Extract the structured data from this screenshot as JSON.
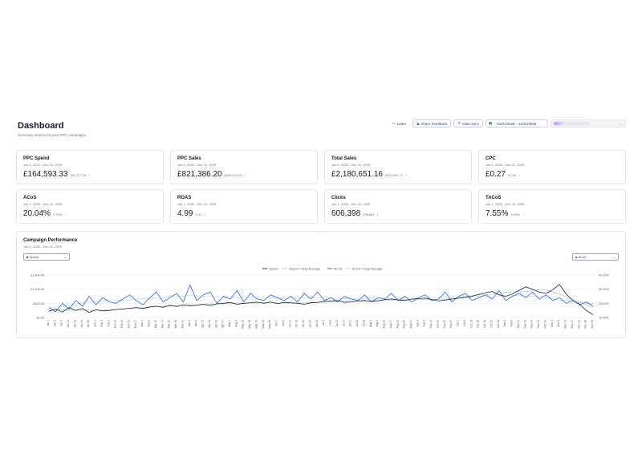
{
  "header": {
    "title": "Dashboard",
    "subtitle": "Summary metrics for your PPC campaigns"
  },
  "toolbar": {
    "learn_label": "Learn",
    "feedback_label": "Share Feedback",
    "sync_label": "Data Sync",
    "date_range": "01/01/2025 - 12/31/2025"
  },
  "cards": [
    {
      "label": "PPC Spend",
      "date": "Jan 1, 2025 - Dec 31, 2025",
      "value": "£164,593.33",
      "change": "£81,177.32"
    },
    {
      "label": "PPC Sales",
      "date": "Jan 1, 2025 - Dec 31, 2025",
      "value": "£821,386.20",
      "change": "£439,211.23"
    },
    {
      "label": "Total Sales",
      "date": "Jan 1, 2025 - Dec 31, 2025",
      "value": "£2,180,651.16",
      "change": "£310,597.77"
    },
    {
      "label": "CPC",
      "date": "Jan 1, 2025 - Dec 31, 2025",
      "value": "£0.27",
      "change": "£0.00"
    },
    {
      "label": "ACoS",
      "date": "Jan 1, 2025 - Dec 31, 2025",
      "value": "20.04%",
      "change": "1.79%"
    },
    {
      "label": "ROAS",
      "date": "Jan 1, 2025 - Dec 31, 2025",
      "value": "4.99",
      "change": "0.41"
    },
    {
      "label": "Clicks",
      "date": "Jan 1, 2025 - Dec 31, 2025",
      "value": "606,398",
      "change": "296,681"
    },
    {
      "label": "TACoS",
      "date": "Jan 1, 2025 - Dec 31, 2025",
      "value": "7.55%",
      "change": "3.09%"
    }
  ],
  "performance": {
    "title": "Campaign Performance",
    "date": "Jan 1, 2025 - Dec 31, 2025",
    "left_select": "Spend",
    "right_select": "ACoS"
  },
  "colors": {
    "series_dark": "#1e293b",
    "series_blue": "#2563eb",
    "accent": "#1e40af"
  },
  "chart_data": {
    "type": "line",
    "legend": [
      "Spend",
      "Spend 7-Day Average",
      "ACoS",
      "ACoS 7-Day Average"
    ],
    "legend_position": "top",
    "y_left_ticks": [
      "£1,800.00",
      "£1,200.00",
      "£600.00",
      "£0.00"
    ],
    "y_right_ticks": [
      "40.00%",
      "30.00%",
      "20.00%",
      "10.00%"
    ],
    "ylim_left": [
      0,
      1800
    ],
    "ylim_right": [
      10,
      40
    ],
    "x_ticks": [
      "Jan 1",
      "Jan 5",
      "Jan 9",
      "Jan 14",
      "Jan 19",
      "Jan 23",
      "Jan 28",
      "Feb 1",
      "Feb 5",
      "Feb 9",
      "Feb 14",
      "Feb 18",
      "Feb 23",
      "Feb 27",
      "Mar 3",
      "Mar 8",
      "Mar 12",
      "Mar 17",
      "Mar 22",
      "Mar 26",
      "Mar 31",
      "Apr 4",
      "Apr 9",
      "Apr 13",
      "Apr 18",
      "Apr 22",
      "Apr 27",
      "May 1",
      "May 6",
      "May 10",
      "May 15",
      "May 19",
      "May 24",
      "May 28",
      "Jun 2",
      "Jun 6",
      "Jun 11",
      "Jun 15",
      "Jun 20",
      "Jun 24",
      "Jun 29",
      "Jul 3",
      "Jul 8",
      "Jul 12",
      "Jul 17",
      "Jul 21",
      "Jul 26",
      "Jul 30",
      "Aug 4",
      "Aug 8",
      "Aug 13",
      "Aug 17",
      "Aug 22",
      "Aug 26",
      "Aug 31",
      "Sep 4",
      "Sep 9",
      "Sep 13",
      "Sep 18",
      "Sep 22",
      "Sep 27",
      "Oct 1",
      "Oct 6",
      "Oct 10",
      "Oct 15",
      "Oct 19",
      "Oct 24",
      "Oct 28",
      "Nov 2",
      "Nov 6",
      "Nov 11",
      "Nov 15",
      "Nov 20",
      "Nov 24",
      "Nov 29",
      "Dec 3",
      "Dec 8",
      "Dec 12",
      "Dec 17",
      "Dec 21",
      "Dec 26",
      "Dec 30"
    ],
    "series": [
      {
        "name": "Spend",
        "values": [
          260,
          360,
          230,
          420,
          300,
          380,
          210,
          330,
          280,
          300,
          340,
          360,
          390,
          420,
          380,
          450,
          480,
          430,
          520,
          470,
          540,
          500,
          520,
          560,
          510,
          580,
          600,
          640,
          560,
          600,
          620,
          650,
          600,
          660,
          580,
          640,
          620,
          600,
          560,
          620,
          640,
          680,
          700,
          720,
          640,
          660,
          700,
          720,
          680,
          700,
          760,
          780,
          740,
          720,
          780,
          800,
          820,
          760,
          700,
          740,
          780,
          820,
          860,
          900,
          980,
          1050,
          1100,
          960,
          900,
          1000,
          1150,
          1300,
          1200,
          1080,
          1020,
          1180,
          1400,
          1000,
          720,
          560,
          300,
          120
        ]
      },
      {
        "name": "ACoS",
        "values": [
          17,
          14,
          20,
          16,
          22,
          18,
          25,
          19,
          24,
          21,
          20,
          23,
          26,
          22,
          19,
          24,
          28,
          21,
          24,
          27,
          21,
          33,
          22,
          26,
          28,
          20,
          25,
          23,
          29,
          21,
          27,
          23,
          22,
          26,
          24,
          22,
          25,
          21,
          27,
          23,
          28,
          22,
          24,
          21,
          25,
          23,
          22,
          26,
          21,
          24,
          23,
          27,
          22,
          25,
          21,
          24,
          26,
          22,
          23,
          28,
          21,
          25,
          27,
          22,
          24,
          26,
          23,
          29,
          22,
          25,
          27,
          24,
          28,
          23,
          26,
          22,
          24,
          20,
          22,
          19,
          21,
          18
        ]
      }
    ]
  }
}
